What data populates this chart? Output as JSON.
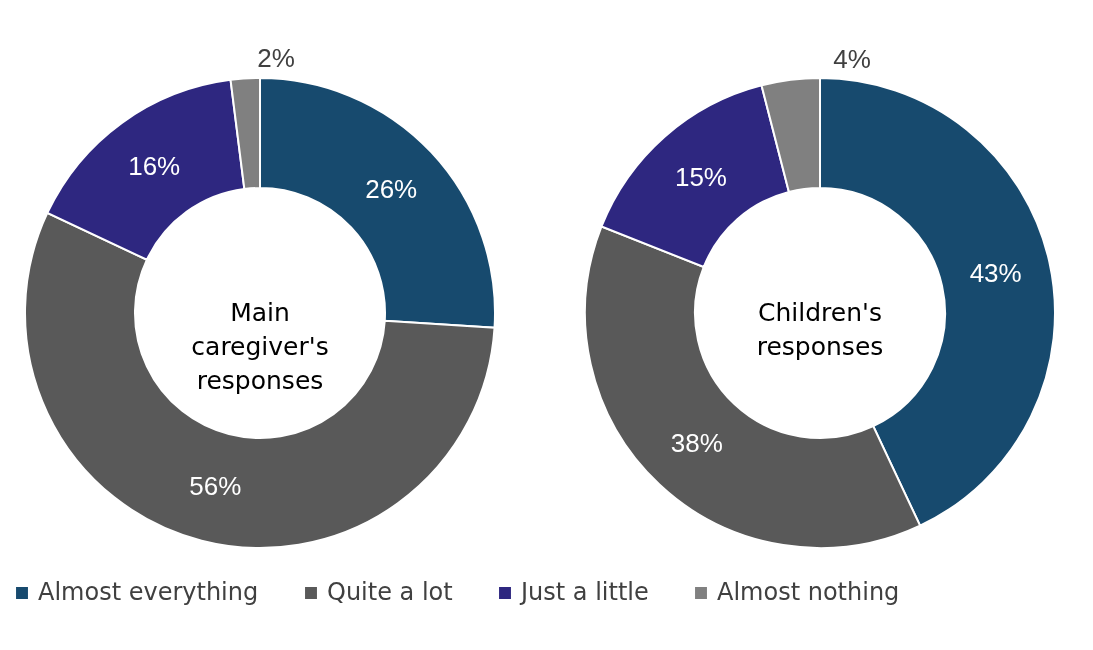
{
  "chart_data": {
    "type": "donut",
    "categories": [
      "Almost everything",
      "Quite a lot",
      "Just a little",
      "Almost nothing"
    ],
    "colors": [
      "#174a6e",
      "#595959",
      "#2e2780",
      "#808080"
    ],
    "legend": "bottom",
    "series": [
      {
        "name": "Main caregiver's responses",
        "values": [
          26,
          56,
          16,
          2
        ],
        "value_labels": [
          "26%",
          "56%",
          "16%",
          "2%"
        ]
      },
      {
        "name": "Children's responses",
        "values": [
          43,
          38,
          15,
          4
        ],
        "value_labels": [
          "43%",
          "38%",
          "15%",
          "4%"
        ]
      }
    ]
  }
}
